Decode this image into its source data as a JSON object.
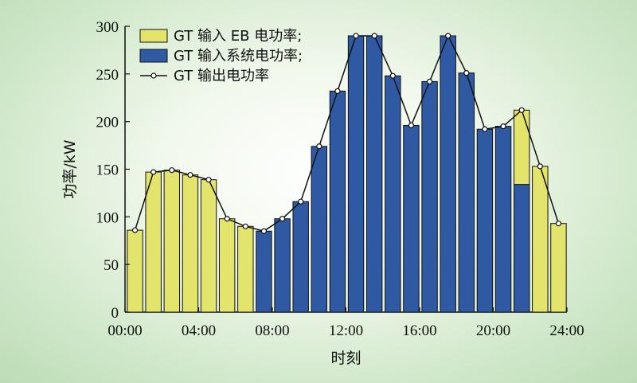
{
  "chart_data": {
    "type": "bar",
    "stacked": true,
    "xlabel": "时刻",
    "ylabel": "功率/kW",
    "ylim": [
      0,
      300
    ],
    "yticks": [
      0,
      50,
      100,
      150,
      200,
      250,
      300
    ],
    "xlim": [
      0,
      24
    ],
    "xticks": [
      "00:00",
      "04:00",
      "08:00",
      "12:00",
      "16:00",
      "20:00",
      "24:00"
    ],
    "x": [
      1,
      2,
      3,
      4,
      5,
      6,
      7,
      8,
      9,
      10,
      11,
      12,
      13,
      14,
      15,
      16,
      17,
      18,
      19,
      20,
      21,
      22,
      23,
      24
    ],
    "series": [
      {
        "name": "GT 输入 EB 电功率;",
        "kind": "bar",
        "color": "#e2e46c",
        "values": [
          86,
          147,
          149,
          144,
          139,
          98,
          90,
          0,
          0,
          0,
          0,
          0,
          0,
          0,
          0,
          0,
          0,
          0,
          0,
          0,
          0,
          78,
          153,
          93
        ]
      },
      {
        "name": "GT 输入系统电功率;",
        "kind": "bar",
        "color": "#2f5aa3",
        "values": [
          0,
          0,
          0,
          0,
          0,
          0,
          0,
          85,
          98,
          116,
          174,
          232,
          290,
          290,
          248,
          196,
          242,
          290,
          251,
          192,
          195,
          134,
          0,
          0
        ]
      },
      {
        "name": "GT 输出电功率",
        "kind": "line",
        "color": "#111111",
        "values": [
          86,
          147,
          149,
          144,
          139,
          98,
          90,
          85,
          98,
          116,
          174,
          232,
          290,
          290,
          248,
          196,
          242,
          290,
          251,
          192,
          195,
          212,
          153,
          93
        ]
      }
    ],
    "legend_position": "top-left",
    "grid": false
  }
}
